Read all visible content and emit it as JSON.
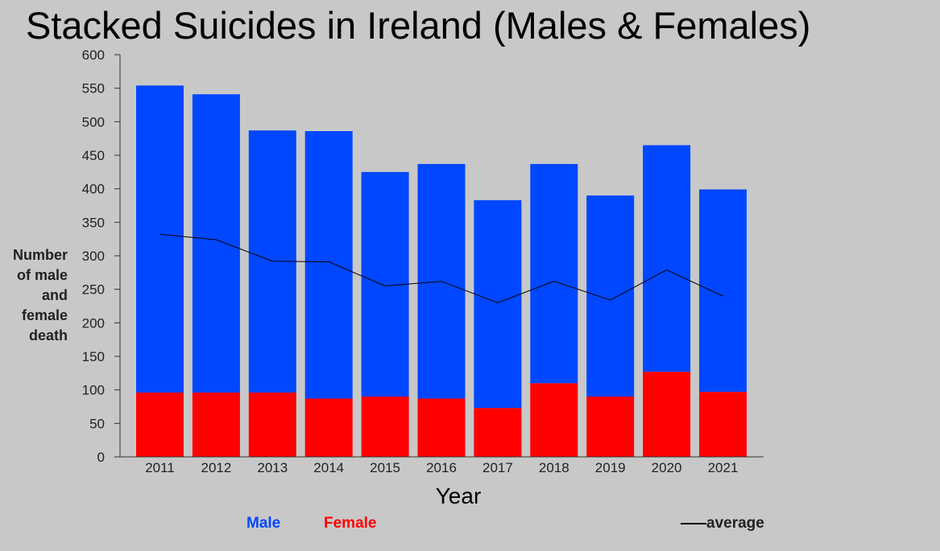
{
  "chart_data": {
    "type": "bar",
    "stacked": true,
    "title": "Stacked Suicides in Ireland (Males & Females)",
    "xlabel": "Year",
    "ylabel": "Number of male and female death",
    "ylim": [
      0,
      600
    ],
    "yticks": [
      0,
      50,
      100,
      150,
      200,
      250,
      300,
      350,
      400,
      450,
      500,
      550,
      600
    ],
    "categories": [
      "2011",
      "2012",
      "2013",
      "2014",
      "2015",
      "2016",
      "2017",
      "2018",
      "2019",
      "2020",
      "2021"
    ],
    "series": [
      {
        "name": "Female",
        "color": "#ff0000",
        "values": [
          96,
          96,
          96,
          87,
          90,
          87,
          73,
          110,
          90,
          127,
          97
        ]
      },
      {
        "name": "Male",
        "color": "#0047ff",
        "values": [
          458,
          445,
          391,
          399,
          335,
          350,
          310,
          327,
          300,
          338,
          302
        ]
      }
    ],
    "line": {
      "name": "average",
      "color": "#000000",
      "values": [
        332,
        324,
        292,
        291,
        255,
        262,
        230,
        262,
        234,
        279,
        240
      ]
    },
    "grid": false,
    "legend": "bottom"
  },
  "legend": {
    "male": "Male",
    "female": "Female",
    "average": "average"
  }
}
